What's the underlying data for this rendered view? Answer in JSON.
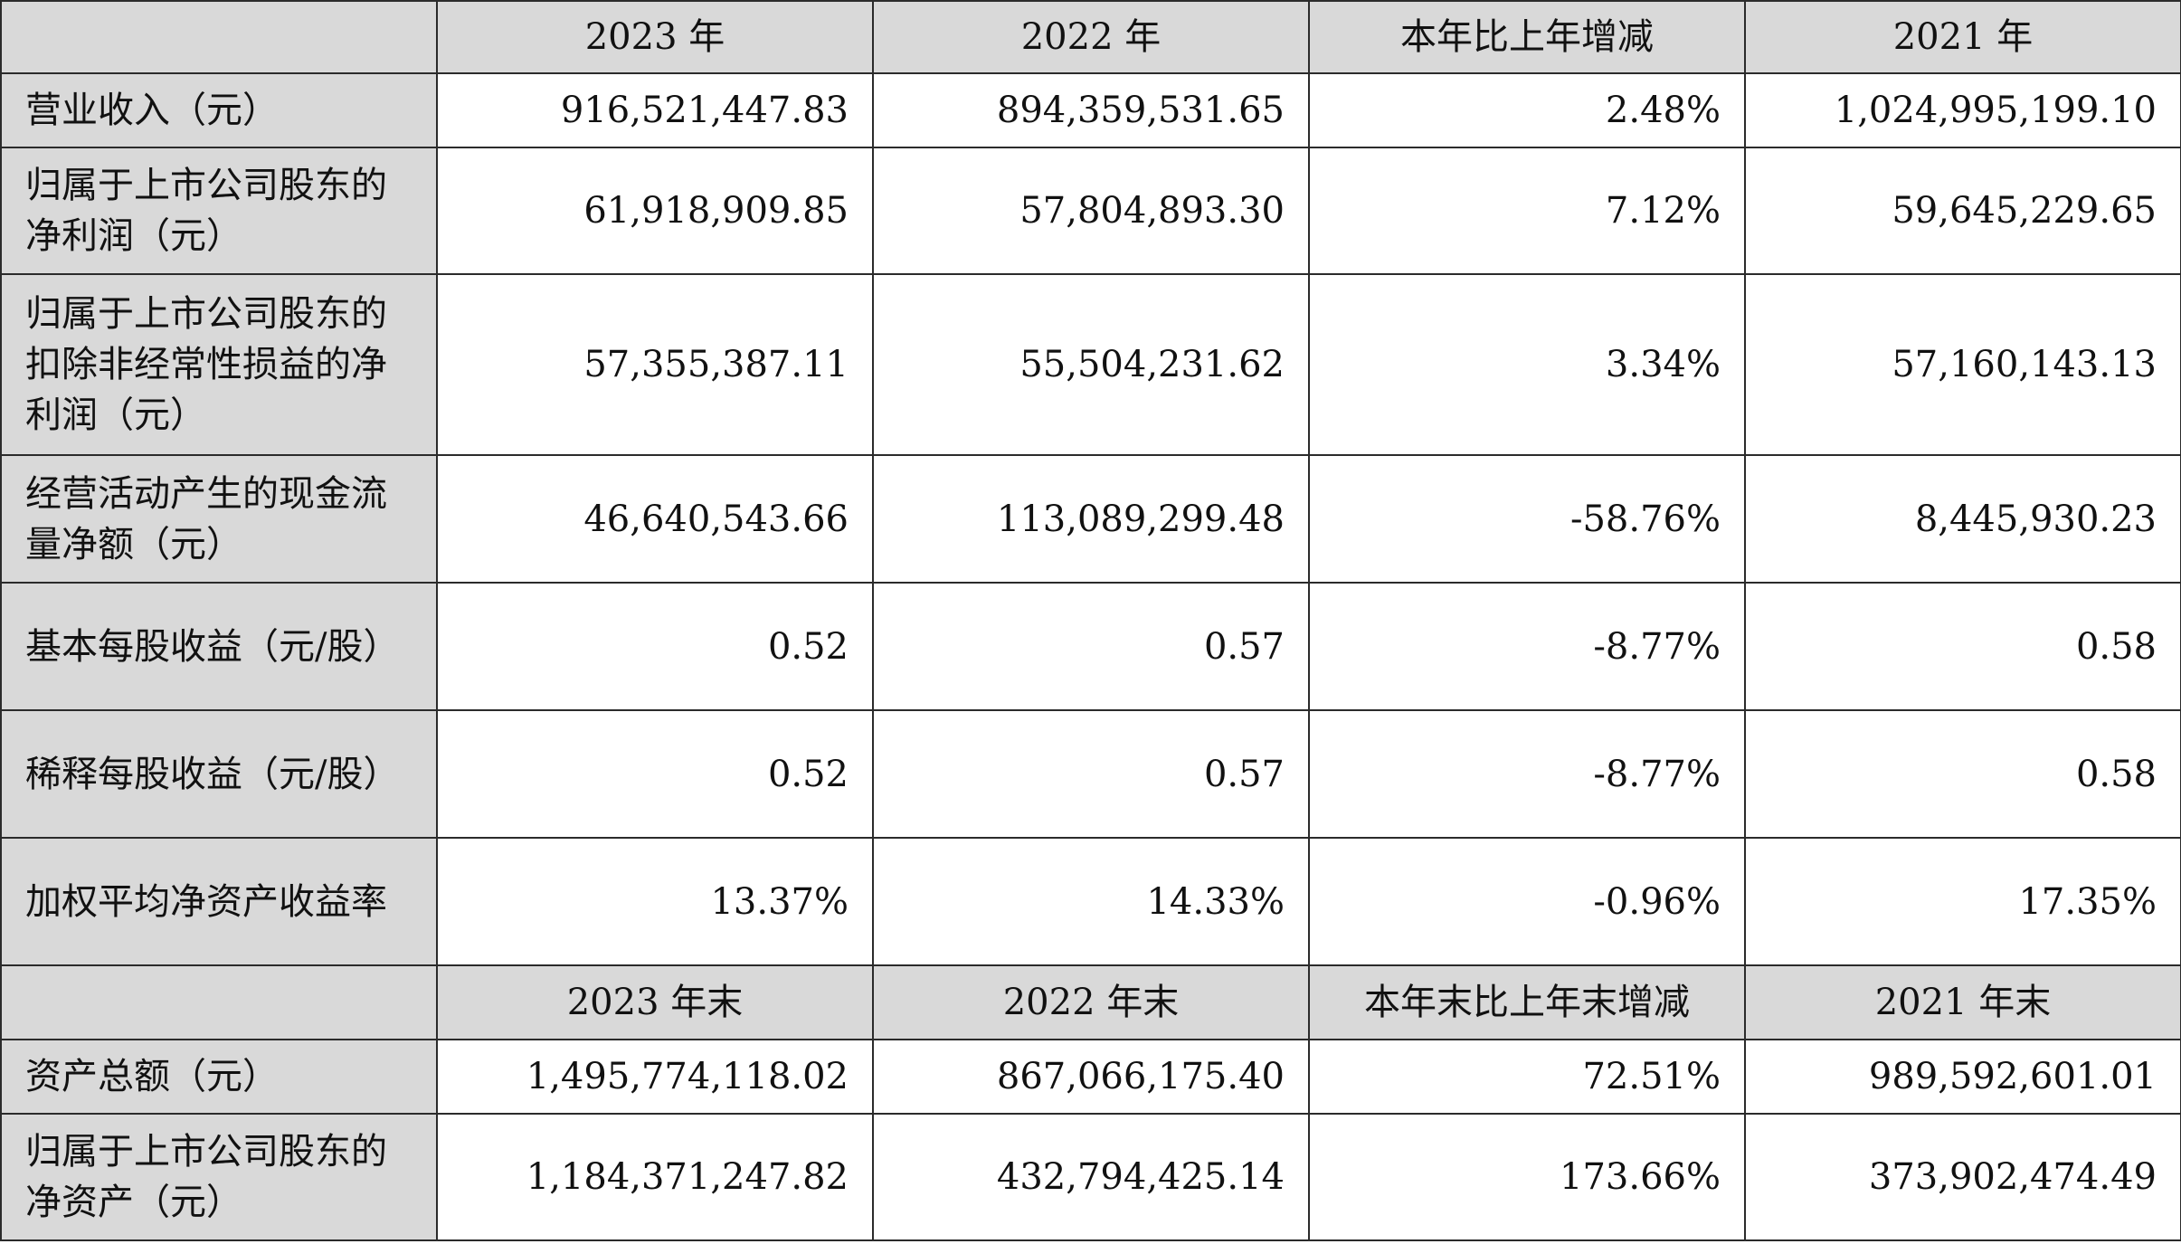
{
  "header_row_1": {
    "corner": "",
    "columns": [
      "2023 年",
      "2022 年",
      "本年比上年增减",
      "2021 年"
    ]
  },
  "rows_1": [
    {
      "label": "营业收入（元）",
      "values": [
        "916,521,447.83",
        "894,359,531.65",
        "2.48%",
        "1,024,995,199.10"
      ]
    },
    {
      "label": "归属于上市公司股东的净利润（元）",
      "values": [
        "61,918,909.85",
        "57,804,893.30",
        "7.12%",
        "59,645,229.65"
      ]
    },
    {
      "label": "归属于上市公司股东的扣除非经常性损益的净利润（元）",
      "values": [
        "57,355,387.11",
        "55,504,231.62",
        "3.34%",
        "57,160,143.13"
      ]
    },
    {
      "label": "经营活动产生的现金流量净额（元）",
      "values": [
        "46,640,543.66",
        "113,089,299.48",
        "-58.76%",
        "8,445,930.23"
      ]
    },
    {
      "label": "基本每股收益（元/股）",
      "values": [
        "0.52",
        "0.57",
        "-8.77%",
        "0.58"
      ]
    },
    {
      "label": "稀释每股收益（元/股）",
      "values": [
        "0.52",
        "0.57",
        "-8.77%",
        "0.58"
      ]
    },
    {
      "label": "加权平均净资产收益率",
      "values": [
        "13.37%",
        "14.33%",
        "-0.96%",
        "17.35%"
      ]
    }
  ],
  "header_row_2": {
    "corner": "",
    "columns": [
      "2023 年末",
      "2022 年末",
      "本年末比上年末增减",
      "2021 年末"
    ]
  },
  "rows_2": [
    {
      "label": "资产总额（元）",
      "values": [
        "1,495,774,118.02",
        "867,066,175.40",
        "72.51%",
        "989,592,601.01"
      ]
    },
    {
      "label": "归属于上市公司股东的净资产（元）",
      "values": [
        "1,184,371,247.82",
        "432,794,425.14",
        "173.66%",
        "373,902,474.49"
      ]
    }
  ]
}
